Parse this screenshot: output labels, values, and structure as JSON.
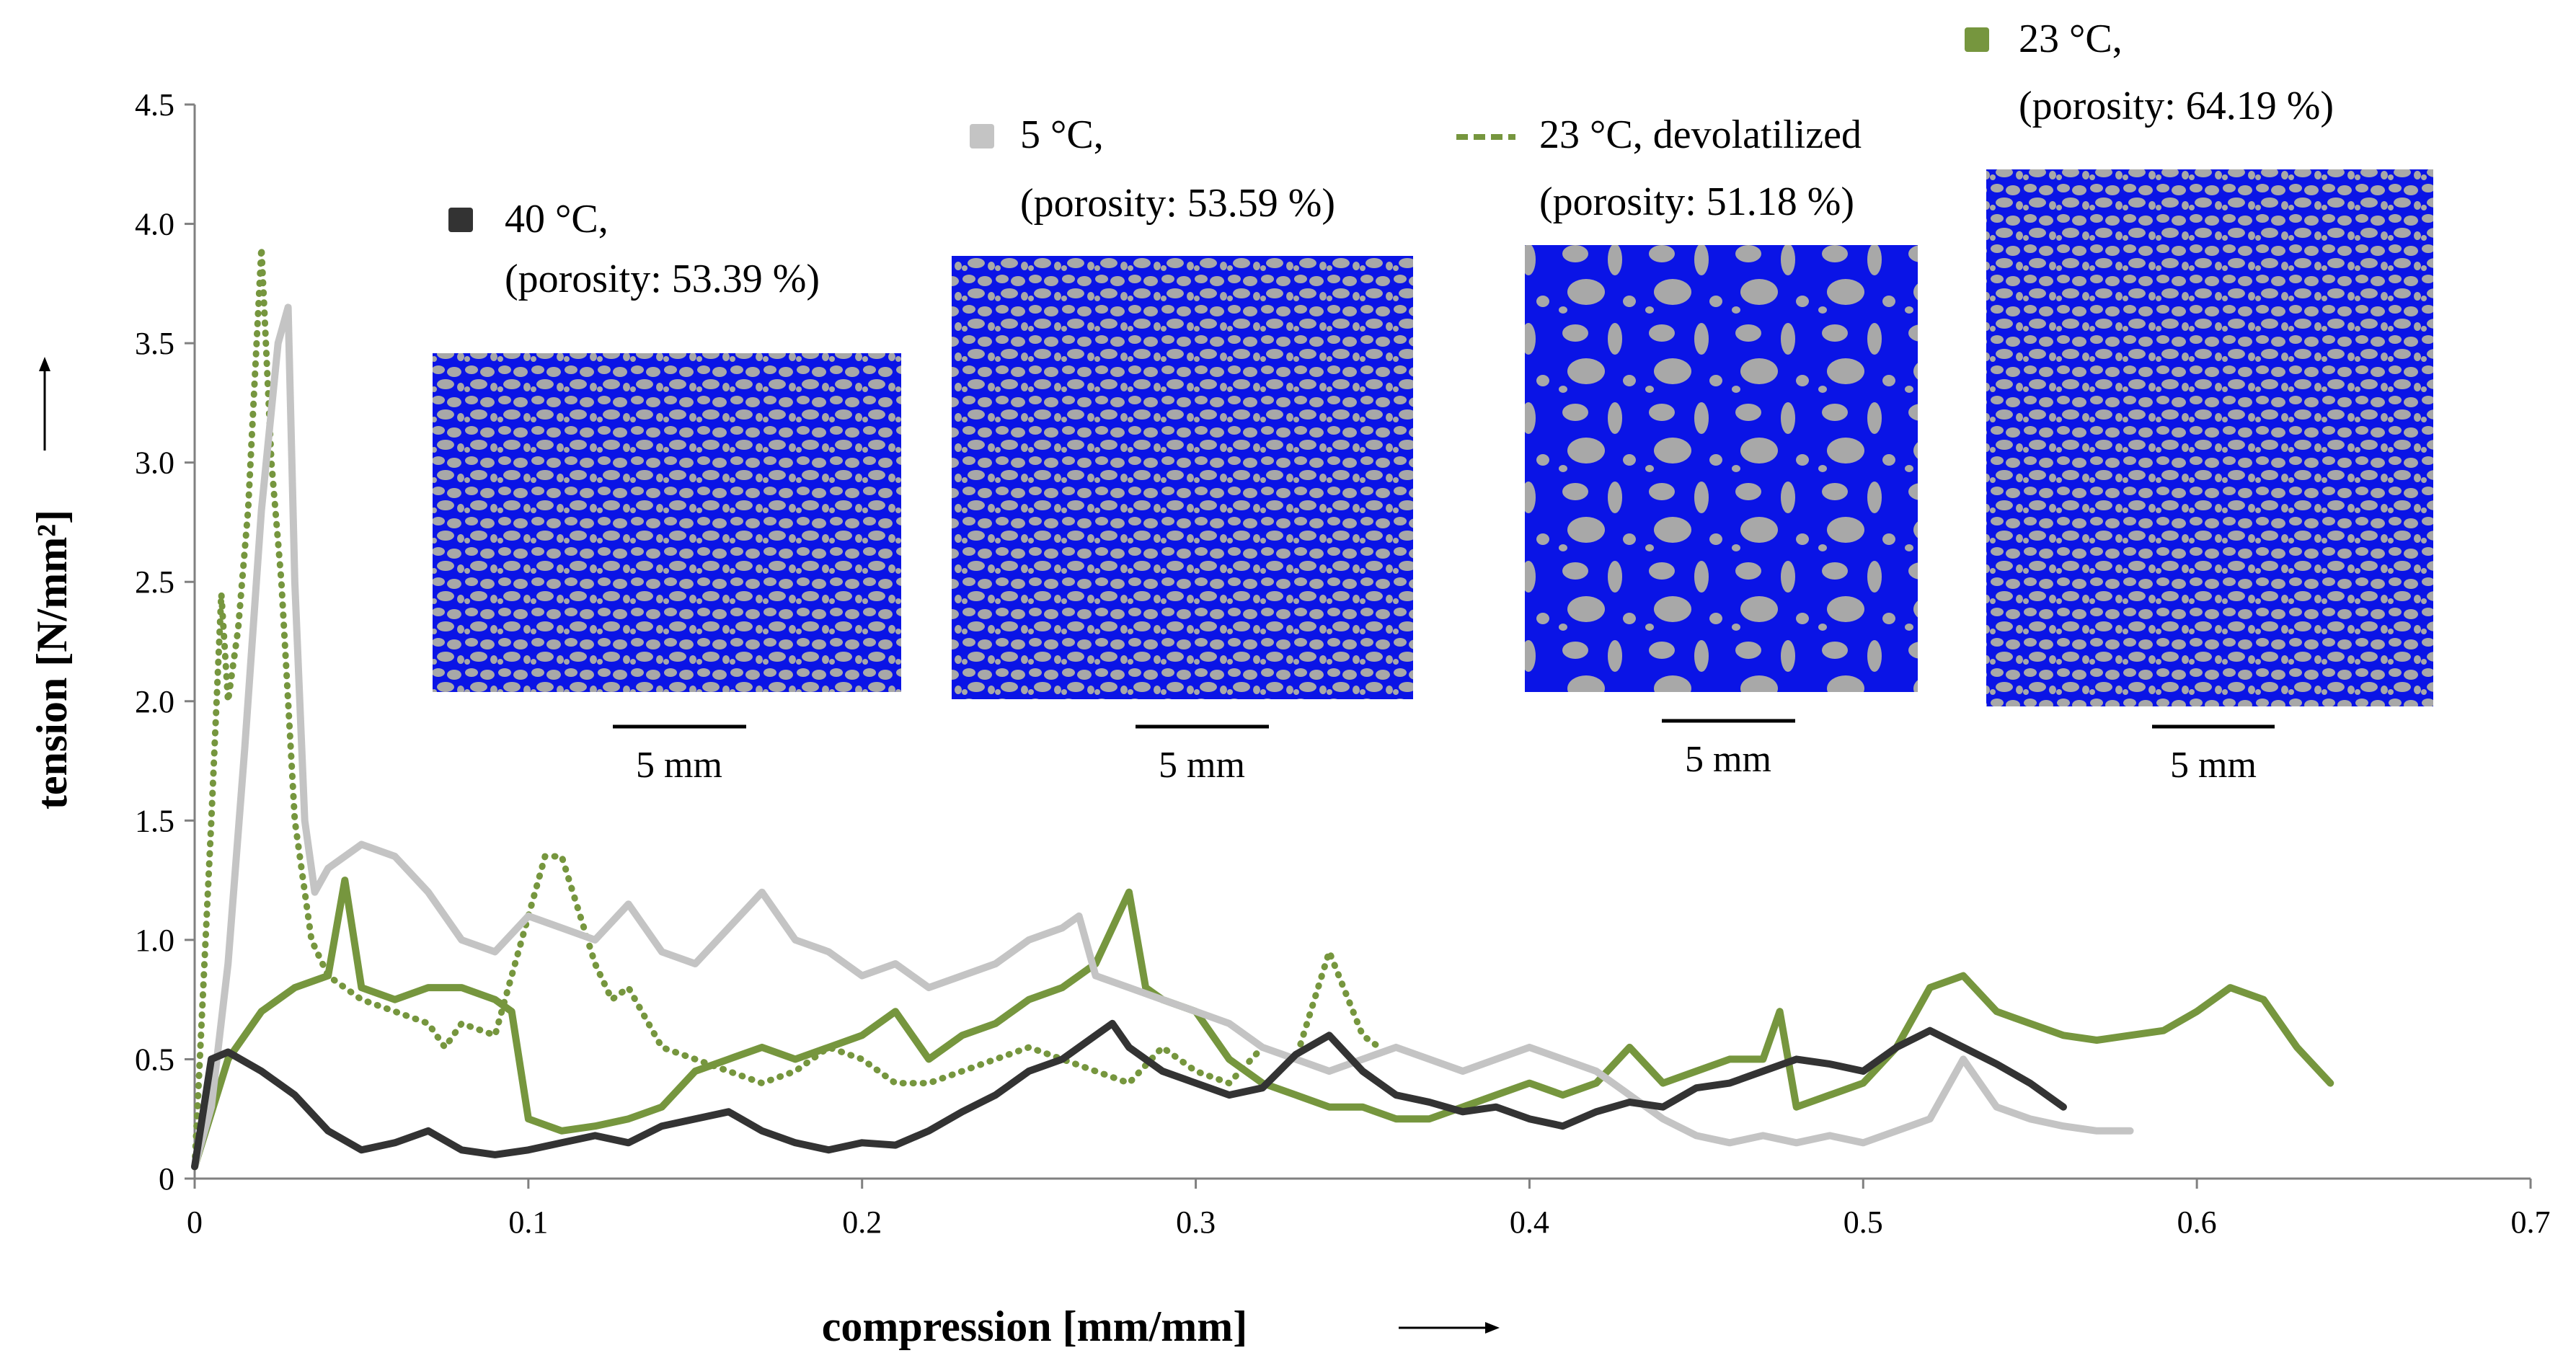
{
  "chart_data": {
    "type": "line",
    "xlabel": "compression [mm/mm]",
    "ylabel": "tension [N/mm²]",
    "xlim": [
      0,
      0.7
    ],
    "ylim": [
      0,
      4.5
    ],
    "x_ticks": [
      "0",
      "0.1",
      "0.2",
      "0.3",
      "0.4",
      "0.5",
      "0.6",
      "0.7"
    ],
    "y_ticks": [
      "0",
      "0.5",
      "1.0",
      "1.5",
      "2.0",
      "2.5",
      "3.0",
      "3.5",
      "4.0",
      "4.5"
    ],
    "colors": {
      "c40": "#333333",
      "c5": "#c4c4c4",
      "c23": "#76963e",
      "c23dev": "#76963e",
      "pore": "#0a14e6",
      "solid": "#a8a8a8"
    },
    "series": [
      {
        "key": "c40",
        "name": "40 °C,",
        "porosity": "(porosity: 53.39 %)",
        "style": "solid",
        "points": [
          [
            0,
            0.05
          ],
          [
            0.005,
            0.5
          ],
          [
            0.01,
            0.53
          ],
          [
            0.02,
            0.45
          ],
          [
            0.03,
            0.35
          ],
          [
            0.04,
            0.2
          ],
          [
            0.05,
            0.12
          ],
          [
            0.06,
            0.15
          ],
          [
            0.07,
            0.2
          ],
          [
            0.08,
            0.12
          ],
          [
            0.09,
            0.1
          ],
          [
            0.1,
            0.12
          ],
          [
            0.11,
            0.15
          ],
          [
            0.12,
            0.18
          ],
          [
            0.13,
            0.15
          ],
          [
            0.14,
            0.22
          ],
          [
            0.15,
            0.25
          ],
          [
            0.16,
            0.28
          ],
          [
            0.17,
            0.2
          ],
          [
            0.18,
            0.15
          ],
          [
            0.19,
            0.12
          ],
          [
            0.2,
            0.15
          ],
          [
            0.21,
            0.14
          ],
          [
            0.22,
            0.2
          ],
          [
            0.23,
            0.28
          ],
          [
            0.24,
            0.35
          ],
          [
            0.25,
            0.45
          ],
          [
            0.26,
            0.5
          ],
          [
            0.27,
            0.6
          ],
          [
            0.275,
            0.65
          ],
          [
            0.28,
            0.55
          ],
          [
            0.29,
            0.45
          ],
          [
            0.3,
            0.4
          ],
          [
            0.31,
            0.35
          ],
          [
            0.32,
            0.38
          ],
          [
            0.33,
            0.52
          ],
          [
            0.34,
            0.6
          ],
          [
            0.35,
            0.45
          ],
          [
            0.36,
            0.35
          ],
          [
            0.37,
            0.32
          ],
          [
            0.38,
            0.28
          ],
          [
            0.39,
            0.3
          ],
          [
            0.4,
            0.25
          ],
          [
            0.41,
            0.22
          ],
          [
            0.42,
            0.28
          ],
          [
            0.43,
            0.32
          ],
          [
            0.44,
            0.3
          ],
          [
            0.45,
            0.38
          ],
          [
            0.46,
            0.4
          ],
          [
            0.47,
            0.45
          ],
          [
            0.48,
            0.5
          ],
          [
            0.49,
            0.48
          ],
          [
            0.5,
            0.45
          ],
          [
            0.51,
            0.55
          ],
          [
            0.52,
            0.62
          ],
          [
            0.53,
            0.55
          ],
          [
            0.54,
            0.48
          ],
          [
            0.55,
            0.4
          ],
          [
            0.56,
            0.3
          ]
        ]
      },
      {
        "key": "c5",
        "name": "5 °C,",
        "porosity": "(porosity: 53.59 %)",
        "style": "solid",
        "points": [
          [
            0,
            0.05
          ],
          [
            0.005,
            0.3
          ],
          [
            0.01,
            0.9
          ],
          [
            0.015,
            1.8
          ],
          [
            0.02,
            2.8
          ],
          [
            0.025,
            3.5
          ],
          [
            0.028,
            3.65
          ],
          [
            0.03,
            2.5
          ],
          [
            0.033,
            1.5
          ],
          [
            0.036,
            1.2
          ],
          [
            0.04,
            1.3
          ],
          [
            0.05,
            1.4
          ],
          [
            0.06,
            1.35
          ],
          [
            0.07,
            1.2
          ],
          [
            0.08,
            1.0
          ],
          [
            0.09,
            0.95
          ],
          [
            0.1,
            1.1
          ],
          [
            0.11,
            1.05
          ],
          [
            0.12,
            1.0
          ],
          [
            0.13,
            1.15
          ],
          [
            0.14,
            0.95
          ],
          [
            0.15,
            0.9
          ],
          [
            0.16,
            1.05
          ],
          [
            0.17,
            1.2
          ],
          [
            0.18,
            1.0
          ],
          [
            0.19,
            0.95
          ],
          [
            0.2,
            0.85
          ],
          [
            0.21,
            0.9
          ],
          [
            0.22,
            0.8
          ],
          [
            0.23,
            0.85
          ],
          [
            0.24,
            0.9
          ],
          [
            0.25,
            1.0
          ],
          [
            0.26,
            1.05
          ],
          [
            0.265,
            1.1
          ],
          [
            0.27,
            0.85
          ],
          [
            0.28,
            0.8
          ],
          [
            0.29,
            0.75
          ],
          [
            0.3,
            0.7
          ],
          [
            0.31,
            0.65
          ],
          [
            0.32,
            0.55
          ],
          [
            0.33,
            0.5
          ],
          [
            0.34,
            0.45
          ],
          [
            0.35,
            0.5
          ],
          [
            0.36,
            0.55
          ],
          [
            0.37,
            0.5
          ],
          [
            0.38,
            0.45
          ],
          [
            0.39,
            0.5
          ],
          [
            0.4,
            0.55
          ],
          [
            0.41,
            0.5
          ],
          [
            0.42,
            0.45
          ],
          [
            0.43,
            0.35
          ],
          [
            0.44,
            0.25
          ],
          [
            0.45,
            0.18
          ],
          [
            0.46,
            0.15
          ],
          [
            0.47,
            0.18
          ],
          [
            0.48,
            0.15
          ],
          [
            0.49,
            0.18
          ],
          [
            0.5,
            0.15
          ],
          [
            0.51,
            0.2
          ],
          [
            0.52,
            0.25
          ],
          [
            0.53,
            0.5
          ],
          [
            0.54,
            0.3
          ],
          [
            0.55,
            0.25
          ],
          [
            0.56,
            0.22
          ],
          [
            0.57,
            0.2
          ],
          [
            0.58,
            0.2
          ]
        ]
      },
      {
        "key": "c23",
        "name": "23 °C,",
        "porosity": "(porosity: 64.19 %)",
        "style": "solid",
        "points": [
          [
            0,
            0.05
          ],
          [
            0.01,
            0.5
          ],
          [
            0.02,
            0.7
          ],
          [
            0.03,
            0.8
          ],
          [
            0.04,
            0.85
          ],
          [
            0.045,
            1.25
          ],
          [
            0.05,
            0.8
          ],
          [
            0.06,
            0.75
          ],
          [
            0.07,
            0.8
          ],
          [
            0.08,
            0.8
          ],
          [
            0.09,
            0.75
          ],
          [
            0.095,
            0.7
          ],
          [
            0.1,
            0.25
          ],
          [
            0.11,
            0.2
          ],
          [
            0.12,
            0.22
          ],
          [
            0.13,
            0.25
          ],
          [
            0.14,
            0.3
          ],
          [
            0.15,
            0.45
          ],
          [
            0.16,
            0.5
          ],
          [
            0.17,
            0.55
          ],
          [
            0.18,
            0.5
          ],
          [
            0.19,
            0.55
          ],
          [
            0.2,
            0.6
          ],
          [
            0.21,
            0.7
          ],
          [
            0.22,
            0.5
          ],
          [
            0.23,
            0.6
          ],
          [
            0.24,
            0.65
          ],
          [
            0.25,
            0.75
          ],
          [
            0.26,
            0.8
          ],
          [
            0.27,
            0.9
          ],
          [
            0.28,
            1.2
          ],
          [
            0.285,
            0.8
          ],
          [
            0.29,
            0.75
          ],
          [
            0.3,
            0.7
          ],
          [
            0.31,
            0.5
          ],
          [
            0.32,
            0.4
          ],
          [
            0.33,
            0.35
          ],
          [
            0.34,
            0.3
          ],
          [
            0.35,
            0.3
          ],
          [
            0.36,
            0.25
          ],
          [
            0.37,
            0.25
          ],
          [
            0.38,
            0.3
          ],
          [
            0.39,
            0.35
          ],
          [
            0.4,
            0.4
          ],
          [
            0.41,
            0.35
          ],
          [
            0.42,
            0.4
          ],
          [
            0.43,
            0.55
          ],
          [
            0.44,
            0.4
          ],
          [
            0.45,
            0.45
          ],
          [
            0.46,
            0.5
          ],
          [
            0.47,
            0.5
          ],
          [
            0.475,
            0.7
          ],
          [
            0.48,
            0.3
          ],
          [
            0.49,
            0.35
          ],
          [
            0.5,
            0.4
          ],
          [
            0.51,
            0.55
          ],
          [
            0.52,
            0.8
          ],
          [
            0.53,
            0.85
          ],
          [
            0.54,
            0.7
          ],
          [
            0.55,
            0.65
          ],
          [
            0.56,
            0.6
          ],
          [
            0.57,
            0.58
          ],
          [
            0.58,
            0.6
          ],
          [
            0.59,
            0.62
          ],
          [
            0.6,
            0.7
          ],
          [
            0.61,
            0.8
          ],
          [
            0.62,
            0.75
          ],
          [
            0.63,
            0.55
          ],
          [
            0.64,
            0.4
          ]
        ]
      },
      {
        "key": "c23dev",
        "name": "23 °C, devolatilized",
        "porosity": "(porosity: 51.18 %)",
        "style": "dotted",
        "points": [
          [
            0,
            0.05
          ],
          [
            0.005,
            1.5
          ],
          [
            0.008,
            2.45
          ],
          [
            0.01,
            2.0
          ],
          [
            0.013,
            2.3
          ],
          [
            0.016,
            2.8
          ],
          [
            0.02,
            3.9
          ],
          [
            0.023,
            3.0
          ],
          [
            0.026,
            2.5
          ],
          [
            0.03,
            1.5
          ],
          [
            0.035,
            1.0
          ],
          [
            0.04,
            0.85
          ],
          [
            0.05,
            0.75
          ],
          [
            0.06,
            0.7
          ],
          [
            0.07,
            0.65
          ],
          [
            0.075,
            0.55
          ],
          [
            0.08,
            0.65
          ],
          [
            0.09,
            0.6
          ],
          [
            0.1,
            1.1
          ],
          [
            0.105,
            1.35
          ],
          [
            0.11,
            1.35
          ],
          [
            0.12,
            0.9
          ],
          [
            0.125,
            0.75
          ],
          [
            0.13,
            0.8
          ],
          [
            0.14,
            0.55
          ],
          [
            0.15,
            0.5
          ],
          [
            0.16,
            0.45
          ],
          [
            0.17,
            0.4
          ],
          [
            0.18,
            0.45
          ],
          [
            0.19,
            0.55
          ],
          [
            0.2,
            0.5
          ],
          [
            0.21,
            0.4
          ],
          [
            0.22,
            0.4
          ],
          [
            0.23,
            0.45
          ],
          [
            0.24,
            0.5
          ],
          [
            0.25,
            0.55
          ],
          [
            0.26,
            0.5
          ],
          [
            0.27,
            0.45
          ],
          [
            0.28,
            0.4
          ],
          [
            0.29,
            0.55
          ],
          [
            0.3,
            0.45
          ],
          [
            0.31,
            0.4
          ],
          [
            0.32,
            0.55
          ],
          [
            0.33,
            0.5
          ],
          [
            0.34,
            0.95
          ],
          [
            0.35,
            0.6
          ],
          [
            0.355,
            0.55
          ]
        ]
      }
    ],
    "scale_bar_label": "5 mm"
  }
}
